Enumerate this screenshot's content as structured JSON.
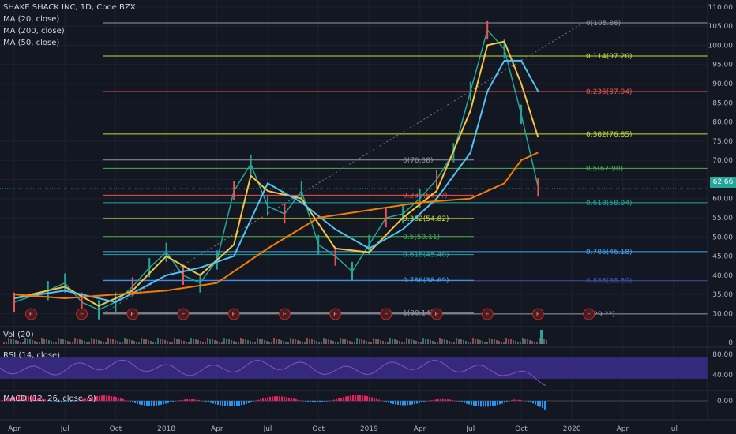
{
  "header": {
    "title": "SHAKE SHACK INC, 1D, Cboe BZX",
    "indicators": [
      "MA (20, close)",
      "MA (200, close)",
      "MA (50, close)"
    ]
  },
  "panes": {
    "volume_label": "Vol (20)",
    "volume_tick": "0",
    "rsi_label": "RSI (14, close)",
    "rsi_ticks": [
      "80.00",
      "40.00"
    ],
    "macd_label": "MACD (12, 26, close, 9)",
    "macd_tick": "0.00"
  },
  "last_price": "62.66",
  "colors": {
    "background": "#131722",
    "candle": "#26a69a",
    "ma20": "#f4c542",
    "ma50": "#4fc3f7",
    "ma200": "#f57c00",
    "rsi_band": "#3d2d8c",
    "rsi_line": "#7e57c2",
    "macd_pos": "#e91e63",
    "macd_neg": "#2196f3",
    "earnings": "#c62828"
  },
  "chart_data": {
    "type": "line",
    "x_ticks": [
      "Apr",
      "Jul",
      "Oct",
      "2018",
      "Apr",
      "Jul",
      "Oct",
      "2019",
      "Apr",
      "Jul",
      "Oct",
      "2020",
      "Apr",
      "Jul"
    ],
    "y_ticks": [
      "110.00",
      "105.00",
      "100.00",
      "95.00",
      "90.00",
      "85.00",
      "80.00",
      "75.00",
      "70.00",
      "65.00",
      "60.00",
      "55.00",
      "50.00",
      "45.00",
      "40.00",
      "35.00",
      "30.00"
    ],
    "ylim": [
      27,
      111
    ],
    "price_series": {
      "x": [
        "2017-04",
        "2017-06",
        "2017-07",
        "2017-08",
        "2017-09",
        "2017-10",
        "2017-11",
        "2017-12",
        "2018-01",
        "2018-02",
        "2018-03",
        "2018-04",
        "2018-05",
        "2018-06",
        "2018-07",
        "2018-08",
        "2018-09",
        "2018-10",
        "2018-11",
        "2018-12",
        "2019-01",
        "2019-02",
        "2019-03",
        "2019-04",
        "2019-05",
        "2019-06",
        "2019-07",
        "2019-08",
        "2019-09",
        "2019-10",
        "2019-11"
      ],
      "values": [
        33,
        36,
        38,
        33,
        31,
        33,
        37,
        42,
        46,
        40,
        38,
        44,
        62,
        69,
        58,
        56,
        62,
        48,
        45,
        41,
        48,
        55,
        56,
        60,
        65,
        72,
        88,
        104,
        99,
        82,
        63
      ]
    },
    "series": [
      {
        "name": "MA (20, close)",
        "x": [
          "2017-04",
          "2017-07",
          "2017-09",
          "2017-11",
          "2018-01",
          "2018-03",
          "2018-05",
          "2018-06",
          "2018-07",
          "2018-09",
          "2018-11",
          "2019-01",
          "2019-03",
          "2019-05",
          "2019-07",
          "2019-08",
          "2019-09",
          "2019-10",
          "2019-11"
        ],
        "values": [
          34,
          37,
          32,
          36,
          45,
          40,
          48,
          66,
          62,
          60,
          47,
          46,
          55,
          62,
          83,
          100,
          101,
          90,
          76
        ]
      },
      {
        "name": "MA (50, close)",
        "x": [
          "2017-04",
          "2017-07",
          "2017-10",
          "2018-01",
          "2018-03",
          "2018-05",
          "2018-07",
          "2018-09",
          "2018-11",
          "2019-01",
          "2019-03",
          "2019-05",
          "2019-07",
          "2019-08",
          "2019-09",
          "2019-10",
          "2019-11"
        ],
        "values": [
          34,
          36,
          33,
          40,
          42,
          45,
          64,
          59,
          52,
          47,
          52,
          60,
          72,
          88,
          96,
          96,
          88
        ]
      },
      {
        "name": "MA (200, close)",
        "x": [
          "2017-04",
          "2017-07",
          "2017-10",
          "2018-01",
          "2018-04",
          "2018-07",
          "2018-10",
          "2019-01",
          "2019-04",
          "2019-07",
          "2019-09",
          "2019-10",
          "2019-11"
        ],
        "values": [
          35,
          34,
          35,
          36,
          38,
          47,
          55,
          57,
          59,
          60,
          64,
          70,
          72
        ]
      }
    ],
    "fib_sets": [
      {
        "levels": [
          {
            "label": "0(105.86)",
            "value": 105.86,
            "color": "#9598a1"
          },
          {
            "label": "0.114(97.20)",
            "value": 97.2,
            "color": "#cddc39"
          },
          {
            "label": "0.236(87.94)",
            "value": 87.94,
            "color": "#ef5350"
          },
          {
            "label": "0.382(76.85)",
            "value": 76.85,
            "color": "#cddc39"
          },
          {
            "label": "0.5(67.90)",
            "value": 67.9,
            "color": "#4caf50"
          },
          {
            "label": "0.618(58.94)",
            "value": 58.94,
            "color": "#26a69a"
          },
          {
            "label": "0.786(46.18)",
            "value": 46.18,
            "color": "#42a5f5"
          },
          {
            "label": "0.886(38.59)",
            "value": 38.59,
            "color": "#3f51b5"
          },
          {
            "label": "1(29.??)",
            "value": 29.9,
            "color": "#9598a1"
          }
        ]
      },
      {
        "levels": [
          {
            "label": "0(70.08)",
            "value": 70.08,
            "color": "#9598a1"
          },
          {
            "label": "0.236(60.??)",
            "value": 60.89,
            "color": "#ef5350"
          },
          {
            "label": "0.382(54.82)",
            "value": 54.82,
            "color": "#cddc39"
          },
          {
            "label": "0.5(50.11)",
            "value": 50.11,
            "color": "#4caf50"
          },
          {
            "label": "0.618(45.40)",
            "value": 45.4,
            "color": "#26a69a"
          },
          {
            "label": "0.786(38.69)",
            "value": 38.69,
            "color": "#42a5f5"
          },
          {
            "label": "1(30.14)",
            "value": 30.14,
            "color": "#9598a1"
          }
        ]
      }
    ],
    "earnings_markers": [
      "2017-05",
      "2017-08",
      "2017-11",
      "2018-02",
      "2018-05",
      "2018-08",
      "2018-11",
      "2019-02",
      "2019-05",
      "2019-08",
      "2019-11",
      "2020-02"
    ],
    "earnings_label": "E"
  }
}
